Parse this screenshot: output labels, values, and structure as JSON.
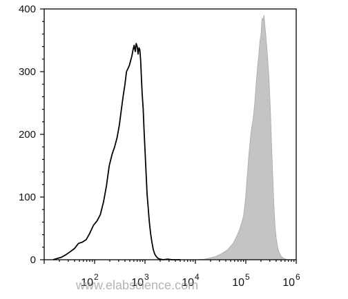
{
  "chart_data": {
    "type": "area",
    "x_scale": "log",
    "xlim": [
      10,
      1000000
    ],
    "ylim": [
      0,
      400
    ],
    "y_ticks": [
      0,
      100,
      200,
      300,
      400
    ],
    "x_ticks": [
      {
        "value": 100,
        "base": "10",
        "exp": "2"
      },
      {
        "value": 1000,
        "base": "10",
        "exp": "3"
      },
      {
        "value": 10000,
        "base": "10",
        "exp": "4"
      },
      {
        "value": 100000,
        "base": "10",
        "exp": "5"
      },
      {
        "value": 1000000,
        "base": "10",
        "exp": "6"
      }
    ],
    "grid": false,
    "series": [
      {
        "style": "outline",
        "color": "#000000",
        "x": [
          15,
          18,
          22,
          27,
          33,
          40,
          48,
          57,
          68,
          80,
          95,
          112,
          130,
          150,
          172,
          195,
          222,
          250,
          280,
          310,
          340,
          370,
          400,
          430,
          460,
          490,
          520,
          550,
          580,
          610,
          640,
          670,
          700,
          730,
          760,
          790,
          820,
          850,
          880,
          920,
          960,
          1000,
          1050,
          1100,
          1160,
          1220,
          1290,
          1370,
          1460,
          1560,
          1680,
          1820,
          2000,
          2300,
          2800,
          3500,
          5000
        ],
        "values": [
          0,
          2,
          4,
          8,
          13,
          18,
          26,
          28,
          32,
          42,
          55,
          62,
          72,
          92,
          118,
          150,
          168,
          180,
          195,
          215,
          240,
          262,
          280,
          300,
          305,
          310,
          318,
          325,
          335,
          342,
          332,
          345,
          340,
          328,
          338,
          335,
          318,
          290,
          265,
          240,
          205,
          175,
          140,
          105,
          82,
          60,
          42,
          28,
          16,
          9,
          5,
          2,
          1,
          0,
          1,
          0,
          0
        ]
      },
      {
        "style": "filled",
        "color": "#c4c4c4",
        "x": [
          10000,
          15000,
          20000,
          25000,
          30000,
          35000,
          40000,
          45000,
          50000,
          56000,
          62000,
          68000,
          75000,
          82000,
          90000,
          98000,
          106000,
          114000,
          122000,
          130000,
          140000,
          150000,
          160000,
          170000,
          180000,
          190000,
          200000,
          210000,
          220000,
          230000,
          240000,
          250000,
          260000,
          270000,
          280000,
          290000,
          300000,
          310000,
          325000,
          340000,
          360000,
          380000,
          400000,
          430000,
          460000,
          500000,
          550000,
          620000,
          700000,
          800000
        ],
        "values": [
          0,
          1,
          3,
          5,
          8,
          11,
          14,
          17,
          22,
          26,
          33,
          40,
          48,
          58,
          70,
          95,
          130,
          165,
          190,
          210,
          225,
          250,
          280,
          305,
          325,
          348,
          360,
          385,
          382,
          390,
          372,
          358,
          340,
          325,
          305,
          285,
          260,
          230,
          180,
          140,
          90,
          55,
          35,
          20,
          11,
          6,
          3,
          1,
          0,
          0
        ]
      }
    ]
  },
  "watermark": "www.elabscience.com",
  "colors": {
    "axis": "#000000",
    "outline": "#000000",
    "fill": "#c4c4c4",
    "fill_edge": "#a8a8a8"
  }
}
